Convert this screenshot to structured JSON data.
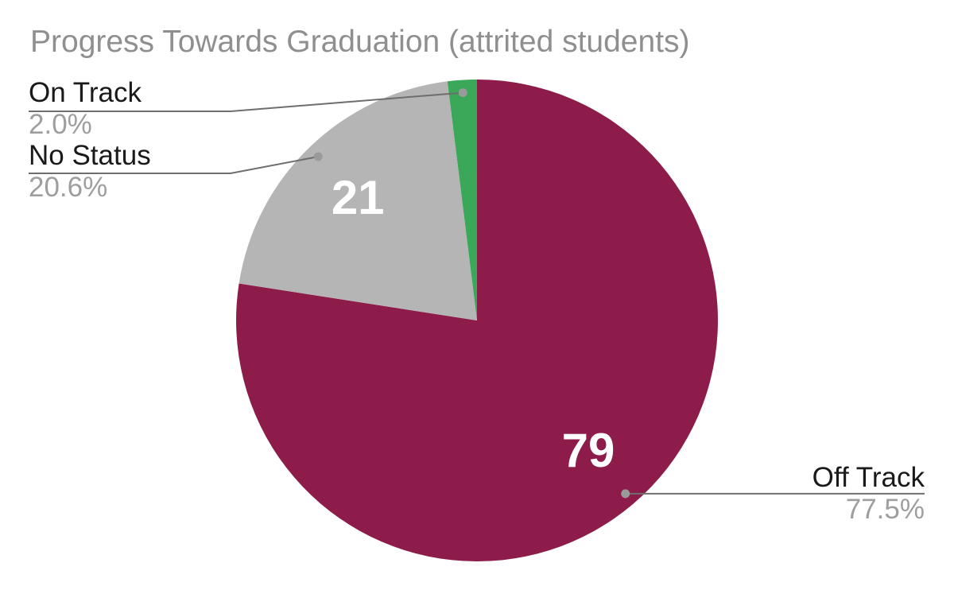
{
  "chart_data": {
    "type": "pie",
    "title": "Progress Towards Graduation (attrited students)",
    "start_angle_deg": 0,
    "direction": "clockwise",
    "legend_position": "callout-labels",
    "slices": [
      {
        "label": "Off Track",
        "value": 79,
        "pct_label": "77.5%",
        "value_label": "79",
        "color": "#8e1c4a",
        "callout_side": "right"
      },
      {
        "label": "No Status",
        "value": 21,
        "pct_label": "20.6%",
        "value_label": "21",
        "color": "#b5b5b5",
        "callout_side": "left"
      },
      {
        "label": "On Track",
        "value": 2,
        "pct_label": "2.0%",
        "value_label": "",
        "color": "#3aa858",
        "callout_side": "left"
      }
    ],
    "colors": {
      "title_text": "#8f8f8f",
      "callout_label_text": "#1a1a1a",
      "callout_pct_text": "#9e9e9e",
      "leader_line": "#6e6e6e",
      "leader_dot": "#9a9a9a",
      "slice_value_text": "#ffffff",
      "background": "#ffffff"
    }
  }
}
